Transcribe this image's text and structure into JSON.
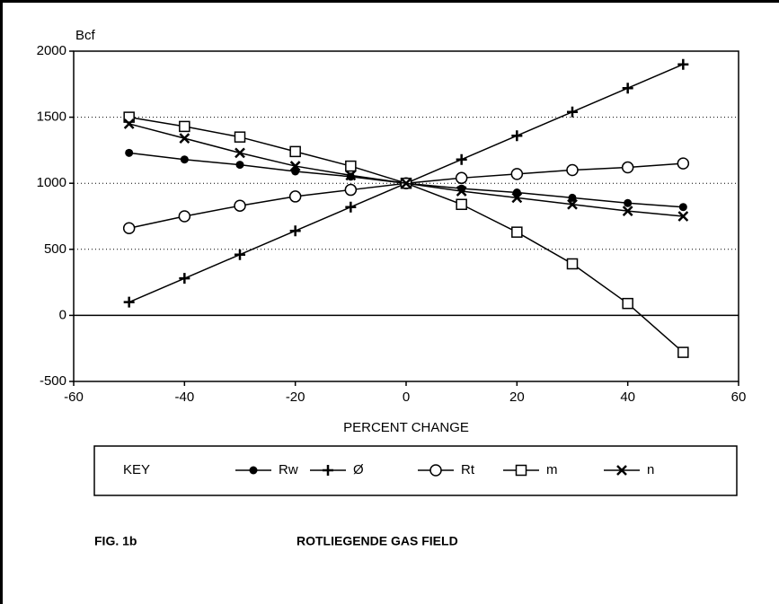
{
  "chart_data": {
    "type": "line",
    "y_label": "Bcf",
    "x_label": "PERCENT CHANGE",
    "legend_title": "KEY",
    "caption": "FIG. 1b",
    "subtitle": "ROTLIEGENDE GAS FIELD",
    "x": [
      -50,
      -40,
      -30,
      -20,
      -10,
      0,
      10,
      20,
      30,
      40,
      50
    ],
    "xlim": [
      -60,
      60
    ],
    "xticks": [
      -60,
      -40,
      -20,
      0,
      20,
      40,
      60
    ],
    "ylim": [
      -500,
      2000
    ],
    "yticks": [
      -500,
      0,
      500,
      1000,
      1500,
      2000
    ],
    "grid": true,
    "series": [
      {
        "name": "Rw",
        "color": "#000000",
        "marker": "dot",
        "values": [
          1230,
          1180,
          1140,
          1090,
          1050,
          1000,
          960,
          930,
          890,
          850,
          820
        ]
      },
      {
        "name": "Ø",
        "color": "#000000",
        "marker": "plus",
        "values": [
          100,
          280,
          460,
          640,
          820,
          1000,
          1180,
          1360,
          1540,
          1720,
          1900
        ]
      },
      {
        "name": "Rt",
        "color": "#000000",
        "marker": "circle",
        "values": [
          660,
          750,
          830,
          900,
          950,
          1000,
          1040,
          1070,
          1100,
          1120,
          1150
        ]
      },
      {
        "name": "m",
        "color": "#000000",
        "marker": "square",
        "values": [
          1500,
          1430,
          1350,
          1240,
          1130,
          1000,
          840,
          630,
          390,
          90,
          -280
        ]
      },
      {
        "name": "n",
        "color": "#000000",
        "marker": "x",
        "values": [
          1450,
          1340,
          1230,
          1130,
          1060,
          1000,
          940,
          890,
          840,
          790,
          750
        ]
      }
    ]
  }
}
